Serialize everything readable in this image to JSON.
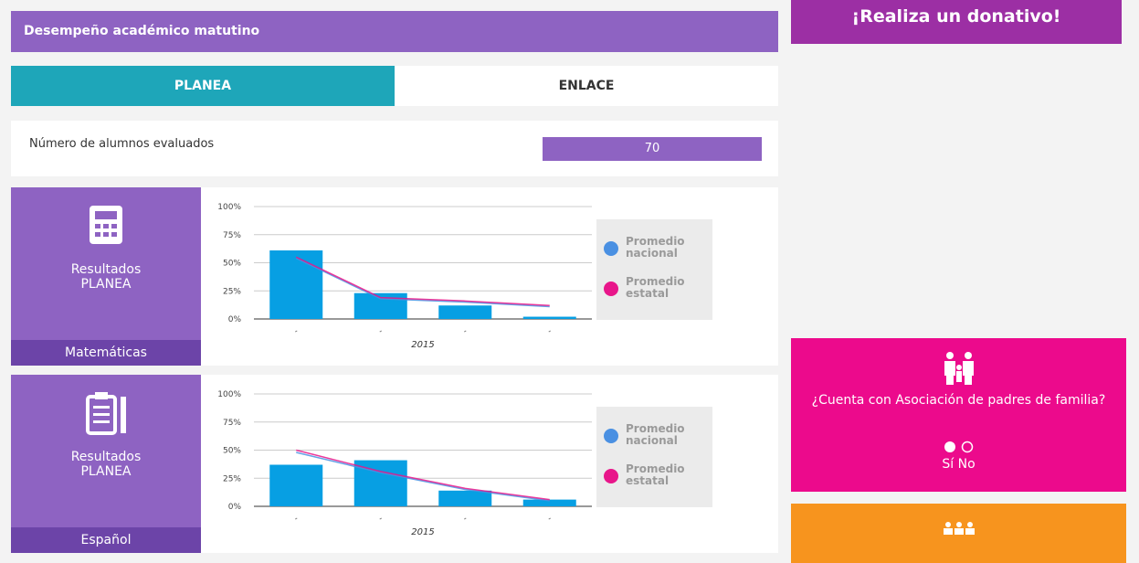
{
  "header": {
    "title": "Desempeño académico matutino"
  },
  "tabs": [
    "PLANEA",
    "ENLACE"
  ],
  "students": {
    "label": "Número de alumnos evaluados",
    "value": 70
  },
  "chart_data": [
    {
      "type": "bar",
      "caption": "Resultados PLANEA",
      "subject": "Matemáticas",
      "x_label": "2015",
      "categories": [
        null,
        null,
        null,
        null
      ],
      "ylim": [
        0,
        100
      ],
      "yticks": [
        {
          "value": 0,
          "label": "0%"
        },
        {
          "value": 25,
          "label": "25%"
        },
        {
          "value": 50,
          "label": "50%"
        },
        {
          "value": 75,
          "label": "75%"
        },
        {
          "value": 100,
          "label": "100%"
        }
      ],
      "grid": true,
      "series": [
        {
          "type": "bar",
          "color": "#079fe3",
          "values": [
            61,
            23,
            12,
            2
          ]
        },
        {
          "type": "line",
          "name": "Promedio nacional",
          "color": "#4a90e2",
          "values": [
            54,
            18,
            15,
            11
          ]
        },
        {
          "type": "line",
          "name": "Promedio estatal",
          "color": "#e8168a",
          "values": [
            55,
            19,
            16,
            12
          ]
        }
      ]
    },
    {
      "type": "bar",
      "caption": "Resultados PLANEA",
      "subject": "Español",
      "x_label": "2015",
      "categories": [
        null,
        null,
        null,
        null
      ],
      "ylim": [
        0,
        100
      ],
      "yticks": [
        {
          "value": 0,
          "label": "0%"
        },
        {
          "value": 25,
          "label": "25%"
        },
        {
          "value": 50,
          "label": "50%"
        },
        {
          "value": 75,
          "label": "75%"
        },
        {
          "value": 100,
          "label": "100%"
        }
      ],
      "grid": true,
      "series": [
        {
          "type": "bar",
          "color": "#079fe3",
          "values": [
            37,
            41,
            14,
            6
          ]
        },
        {
          "type": "line",
          "name": "Promedio nacional",
          "color": "#4a90e2",
          "values": [
            48,
            30,
            15,
            5
          ]
        },
        {
          "type": "line",
          "name": "Promedio estatal",
          "color": "#e8168a",
          "values": [
            50,
            31,
            16,
            6
          ]
        }
      ]
    }
  ],
  "sidebar": {
    "donate": "¡Realiza un donativo!",
    "parents": {
      "question": "¿Cuenta con Asociación de padres de familia?",
      "options": [
        "Sí",
        "No"
      ]
    }
  }
}
